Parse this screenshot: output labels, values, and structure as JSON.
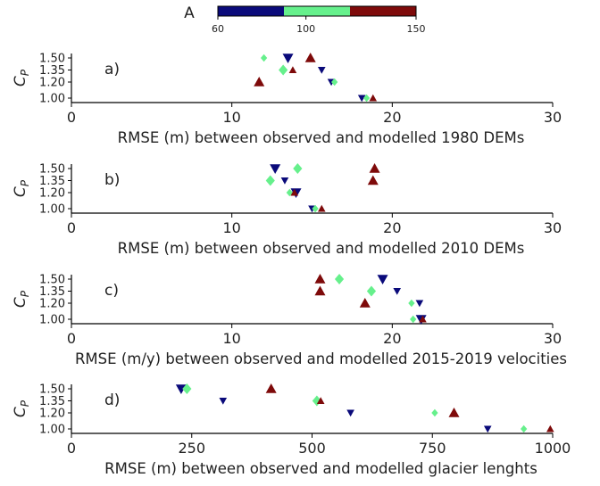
{
  "colorbar": {
    "label": "A",
    "ticks": [
      "60",
      "100",
      "150"
    ],
    "colors": [
      "#0a0a7a",
      "#66f08c",
      "#7e0a0a"
    ]
  },
  "marker_colors": {
    "low": "#0a0a7a",
    "mid": "#66f08c",
    "high": "#7e0a0a"
  },
  "chart_data": [
    {
      "type": "scatter",
      "panel": "a)",
      "ylabel": "C_P",
      "xlabel": "RMSE (m) between observed and modelled 1980 DEMs",
      "xlim": [
        0,
        30
      ],
      "xticks": [
        "0",
        "10",
        "20",
        "30"
      ],
      "yticks": [
        "1.50",
        "1.35",
        "1.20",
        "1.00"
      ],
      "points": [
        {
          "x": 13.5,
          "y": 1.5,
          "color": "low",
          "marker": "tri-down",
          "size": "large"
        },
        {
          "x": 12.0,
          "y": 1.5,
          "color": "mid",
          "marker": "diamond",
          "size": "small"
        },
        {
          "x": 14.9,
          "y": 1.5,
          "color": "high",
          "marker": "tri-up",
          "size": "large"
        },
        {
          "x": 15.6,
          "y": 1.35,
          "color": "low",
          "marker": "tri-down",
          "size": "small"
        },
        {
          "x": 13.2,
          "y": 1.35,
          "color": "mid",
          "marker": "diamond",
          "size": "large"
        },
        {
          "x": 13.8,
          "y": 1.35,
          "color": "high",
          "marker": "tri-up",
          "size": "small"
        },
        {
          "x": 16.2,
          "y": 1.2,
          "color": "low",
          "marker": "tri-down",
          "size": "small"
        },
        {
          "x": 16.4,
          "y": 1.2,
          "color": "mid",
          "marker": "diamond",
          "size": "small"
        },
        {
          "x": 11.7,
          "y": 1.2,
          "color": "high",
          "marker": "tri-up",
          "size": "large"
        },
        {
          "x": 18.1,
          "y": 1.0,
          "color": "low",
          "marker": "tri-down",
          "size": "small"
        },
        {
          "x": 18.4,
          "y": 1.0,
          "color": "mid",
          "marker": "diamond",
          "size": "small"
        },
        {
          "x": 18.8,
          "y": 1.0,
          "color": "high",
          "marker": "tri-up",
          "size": "small"
        }
      ]
    },
    {
      "type": "scatter",
      "panel": "b)",
      "ylabel": "C_P",
      "xlabel": "RMSE (m) between observed and modelled 2010 DEMs",
      "xlim": [
        0,
        30
      ],
      "xticks": [
        "0",
        "10",
        "20",
        "30"
      ],
      "yticks": [
        "1.50",
        "1.35",
        "1.20",
        "1.00"
      ],
      "points": [
        {
          "x": 12.7,
          "y": 1.5,
          "color": "low",
          "marker": "tri-down",
          "size": "large"
        },
        {
          "x": 14.1,
          "y": 1.5,
          "color": "mid",
          "marker": "diamond",
          "size": "large"
        },
        {
          "x": 18.9,
          "y": 1.5,
          "color": "high",
          "marker": "tri-up",
          "size": "large"
        },
        {
          "x": 13.3,
          "y": 1.35,
          "color": "low",
          "marker": "tri-down",
          "size": "small"
        },
        {
          "x": 12.4,
          "y": 1.35,
          "color": "mid",
          "marker": "diamond",
          "size": "large"
        },
        {
          "x": 18.8,
          "y": 1.35,
          "color": "high",
          "marker": "tri-up",
          "size": "large"
        },
        {
          "x": 14.0,
          "y": 1.2,
          "color": "low",
          "marker": "tri-down",
          "size": "large"
        },
        {
          "x": 13.6,
          "y": 1.2,
          "color": "mid",
          "marker": "diamond",
          "size": "small"
        },
        {
          "x": 13.9,
          "y": 1.2,
          "color": "high",
          "marker": "tri-up",
          "size": "small"
        },
        {
          "x": 15.0,
          "y": 1.0,
          "color": "low",
          "marker": "tri-down",
          "size": "small"
        },
        {
          "x": 15.2,
          "y": 1.0,
          "color": "mid",
          "marker": "diamond",
          "size": "small"
        },
        {
          "x": 15.6,
          "y": 1.0,
          "color": "high",
          "marker": "tri-up",
          "size": "small"
        }
      ]
    },
    {
      "type": "scatter",
      "panel": "c)",
      "ylabel": "C_P",
      "xlabel": "RMSE (m/y) between observed and modelled 2015-2019 velocities",
      "xlim": [
        0,
        30
      ],
      "xticks": [
        "0",
        "10",
        "20",
        "30"
      ],
      "yticks": [
        "1.50",
        "1.35",
        "1.20",
        "1.00"
      ],
      "points": [
        {
          "x": 19.4,
          "y": 1.5,
          "color": "low",
          "marker": "tri-down",
          "size": "large"
        },
        {
          "x": 16.7,
          "y": 1.5,
          "color": "mid",
          "marker": "diamond",
          "size": "large"
        },
        {
          "x": 15.5,
          "y": 1.5,
          "color": "high",
          "marker": "tri-up",
          "size": "large"
        },
        {
          "x": 20.3,
          "y": 1.35,
          "color": "low",
          "marker": "tri-down",
          "size": "small"
        },
        {
          "x": 18.7,
          "y": 1.35,
          "color": "mid",
          "marker": "diamond",
          "size": "large"
        },
        {
          "x": 15.5,
          "y": 1.35,
          "color": "high",
          "marker": "tri-up",
          "size": "large"
        },
        {
          "x": 21.7,
          "y": 1.2,
          "color": "low",
          "marker": "tri-down",
          "size": "small"
        },
        {
          "x": 21.2,
          "y": 1.2,
          "color": "mid",
          "marker": "diamond",
          "size": "small"
        },
        {
          "x": 18.3,
          "y": 1.2,
          "color": "high",
          "marker": "tri-up",
          "size": "large"
        },
        {
          "x": 21.8,
          "y": 1.0,
          "color": "low",
          "marker": "tri-down",
          "size": "large"
        },
        {
          "x": 21.3,
          "y": 1.0,
          "color": "mid",
          "marker": "diamond",
          "size": "small"
        },
        {
          "x": 21.9,
          "y": 1.0,
          "color": "high",
          "marker": "tri-up",
          "size": "small"
        }
      ]
    },
    {
      "type": "scatter",
      "panel": "d)",
      "ylabel": "C_P",
      "xlabel": "RMSE (m) between observed and modelled glacier lenghts",
      "xlim": [
        0,
        1000
      ],
      "xticks": [
        "0",
        "250",
        "500",
        "750",
        "1000"
      ],
      "yticks": [
        "1.50",
        "1.35",
        "1.20",
        "1.00"
      ],
      "points": [
        {
          "x": 228,
          "y": 1.5,
          "color": "low",
          "marker": "tri-down",
          "size": "large"
        },
        {
          "x": 240,
          "y": 1.5,
          "color": "mid",
          "marker": "diamond",
          "size": "large"
        },
        {
          "x": 415,
          "y": 1.5,
          "color": "high",
          "marker": "tri-up",
          "size": "large"
        },
        {
          "x": 315,
          "y": 1.35,
          "color": "low",
          "marker": "tri-down",
          "size": "small"
        },
        {
          "x": 510,
          "y": 1.35,
          "color": "mid",
          "marker": "diamond",
          "size": "large"
        },
        {
          "x": 518,
          "y": 1.35,
          "color": "high",
          "marker": "tri-up",
          "size": "small"
        },
        {
          "x": 580,
          "y": 1.2,
          "color": "low",
          "marker": "tri-down",
          "size": "small"
        },
        {
          "x": 755,
          "y": 1.2,
          "color": "mid",
          "marker": "diamond",
          "size": "small"
        },
        {
          "x": 795,
          "y": 1.2,
          "color": "high",
          "marker": "tri-up",
          "size": "large"
        },
        {
          "x": 865,
          "y": 1.0,
          "color": "low",
          "marker": "tri-down",
          "size": "small"
        },
        {
          "x": 940,
          "y": 1.0,
          "color": "mid",
          "marker": "diamond",
          "size": "small"
        },
        {
          "x": 995,
          "y": 1.0,
          "color": "high",
          "marker": "tri-up",
          "size": "small"
        }
      ]
    }
  ]
}
